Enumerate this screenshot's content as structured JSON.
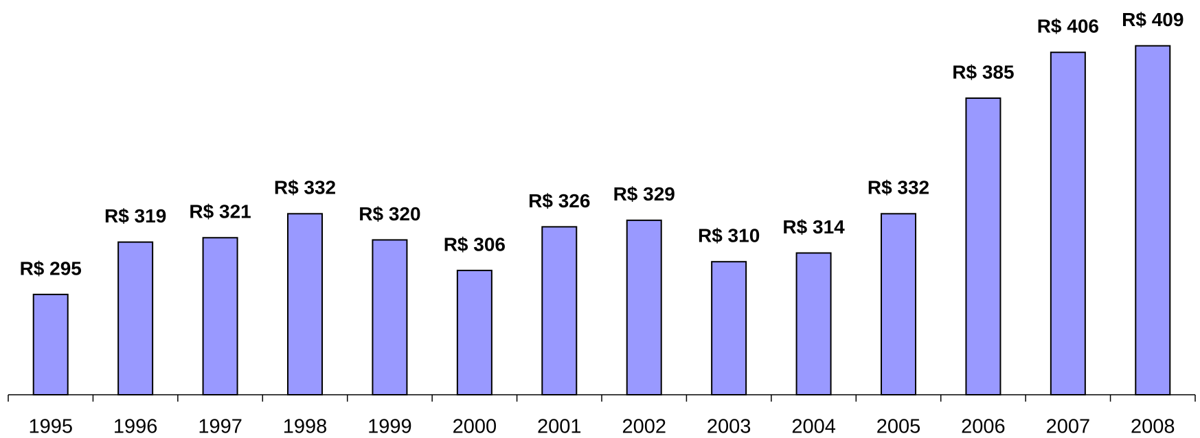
{
  "chart_data": {
    "type": "bar",
    "categories": [
      "1995",
      "1996",
      "1997",
      "1998",
      "1999",
      "2000",
      "2001",
      "2002",
      "2003",
      "2004",
      "2005",
      "2006",
      "2007",
      "2008"
    ],
    "values": [
      295,
      319,
      321,
      332,
      320,
      306,
      326,
      329,
      310,
      314,
      332,
      385,
      406,
      409
    ],
    "value_labels": [
      "R$ 295",
      "R$ 319",
      "R$ 321",
      "R$ 332",
      "R$ 320",
      "R$ 306",
      "R$ 326",
      "R$ 329",
      "R$ 310",
      "R$ 314",
      "R$ 332",
      "R$ 385",
      "R$ 406",
      "R$ 409"
    ],
    "color": "#9999ff",
    "ylim": [
      249,
      430
    ]
  }
}
